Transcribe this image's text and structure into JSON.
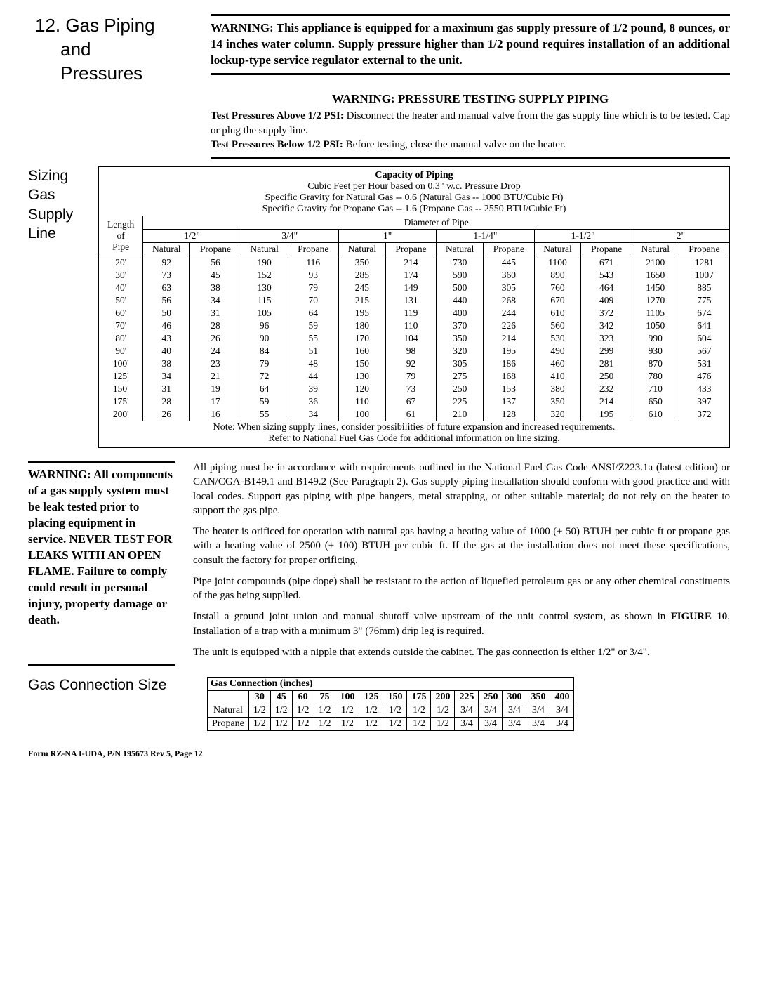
{
  "section": {
    "number": "12.",
    "title_l1": "Gas Piping",
    "title_l2": "and",
    "title_l3": "Pressures"
  },
  "warning_box": "WARNING: This appliance is equipped for a maximum gas supply pressure of 1/2 pound, 8 ounces, or 14 inches water column. Supply pressure higher than 1/2 pound requires installation of an additional lockup-type service regulator external to the unit.",
  "warning2": {
    "title": "WARNING: PRESSURE TESTING SUPPLY PIPING",
    "above_label": "Test Pressures Above 1/2 PSI:",
    "above_text": " Disconnect the heater and manual valve from the gas supply line which is to be tested. Cap or plug the supply line.",
    "below_label": "Test Pressures Below 1/2 PSI:",
    "below_text": " Before testing, close the manual valve on the heater."
  },
  "sizing_label": {
    "l1": "Sizing",
    "l2": "Gas",
    "l3": "Supply",
    "l4": "Line"
  },
  "cap_table": {
    "title": "Capacity of Piping",
    "sub1": "Cubic Feet per Hour based on 0.3\" w.c. Pressure Drop",
    "sub2": "Specific Gravity for Natural Gas -- 0.6 (Natural Gas -- 1000 BTU/Cubic Ft)",
    "sub3": "Specific Gravity for Propane Gas -- 1.6 (Propane Gas -- 2550 BTU/Cubic Ft)",
    "length_header_l1": "Length",
    "length_header_l2": "of",
    "length_header_l3": "Pipe",
    "diameter_header": "Diameter of Pipe",
    "diameters": [
      "1/2\"",
      "3/4\"",
      "1\"",
      "1-1/4\"",
      "1-1/2\"",
      "2\""
    ],
    "sub_headers": [
      "Natural",
      "Propane"
    ],
    "rows": [
      {
        "len": "20'",
        "v": [
          92,
          56,
          190,
          116,
          350,
          214,
          730,
          445,
          1100,
          671,
          2100,
          1281
        ]
      },
      {
        "len": "30'",
        "v": [
          73,
          45,
          152,
          93,
          285,
          174,
          590,
          360,
          890,
          543,
          1650,
          1007
        ]
      },
      {
        "len": "40'",
        "v": [
          63,
          38,
          130,
          79,
          245,
          149,
          500,
          305,
          760,
          464,
          1450,
          885
        ]
      },
      {
        "len": "50'",
        "v": [
          56,
          34,
          115,
          70,
          215,
          131,
          440,
          268,
          670,
          409,
          1270,
          775
        ]
      },
      {
        "len": "60'",
        "v": [
          50,
          31,
          105,
          64,
          195,
          119,
          400,
          244,
          610,
          372,
          1105,
          674
        ]
      },
      {
        "len": "70'",
        "v": [
          46,
          28,
          96,
          59,
          180,
          110,
          370,
          226,
          560,
          342,
          1050,
          641
        ]
      },
      {
        "len": "80'",
        "v": [
          43,
          26,
          90,
          55,
          170,
          104,
          350,
          214,
          530,
          323,
          990,
          604
        ]
      },
      {
        "len": "90'",
        "v": [
          40,
          24,
          84,
          51,
          160,
          98,
          320,
          195,
          490,
          299,
          930,
          567
        ]
      },
      {
        "len": "100'",
        "v": [
          38,
          23,
          79,
          48,
          150,
          92,
          305,
          186,
          460,
          281,
          870,
          531
        ]
      },
      {
        "len": "125'",
        "v": [
          34,
          21,
          72,
          44,
          130,
          79,
          275,
          168,
          410,
          250,
          780,
          476
        ]
      },
      {
        "len": "150'",
        "v": [
          31,
          19,
          64,
          39,
          120,
          73,
          250,
          153,
          380,
          232,
          710,
          433
        ]
      },
      {
        "len": "175'",
        "v": [
          28,
          17,
          59,
          36,
          110,
          67,
          225,
          137,
          350,
          214,
          650,
          397
        ]
      },
      {
        "len": "200'",
        "v": [
          26,
          16,
          55,
          34,
          100,
          61,
          210,
          128,
          320,
          195,
          610,
          372
        ]
      }
    ],
    "note1": "Note: When sizing supply lines, consider possibilities of future expansion and increased requirements.",
    "note2": "Refer to National Fuel Gas Code for additional information on line sizing."
  },
  "leak_warning": "WARNING: All components of a gas supply system must be leak tested prior to placing equipment in service. NEVER TEST FOR LEAKS WITH AN OPEN FLAME. Failure to comply could result in personal injury, property damage or death.",
  "body": {
    "p1": "All piping must be in accordance with requirements outlined in the National Fuel Gas Code ANSI/Z223.1a (latest edition) or CAN/CGA-B149.1 and B149.2 (See Paragraph 2). Gas supply piping installation should conform with good practice and with local codes. Support gas piping with pipe hangers, metal strapping, or other suitable material; do not rely on the heater to support the gas pipe.",
    "p2": "The heater is orificed for operation with natural gas having a heating value of 1000 (± 50) BTUH per cubic ft or propane gas with a heating value of 2500 (± 100) BTUH per cubic ft. If the gas at the installation does not meet these specifications, consult the factory for proper orificing.",
    "p3": "Pipe joint compounds (pipe dope) shall be resistant to the action of liquefied petroleum gas or any other chemical constituents of the gas being supplied.",
    "p4a": "Install a ground joint union and manual shutoff valve upstream of the unit control system, as shown in ",
    "p4b": "FIGURE 10",
    "p4c": ". Installation of a trap with a minimum 3\" (76mm) drip leg is required.",
    "p5": "The unit is equipped with a nipple that extends outside the cabinet. The gas connection is either 1/2\" or 3/4\"."
  },
  "gas_conn": {
    "label": "Gas Connection Size",
    "title": "Gas Connection (inches)",
    "sizes": [
      "30",
      "45",
      "60",
      "75",
      "100",
      "125",
      "150",
      "175",
      "200",
      "225",
      "250",
      "300",
      "350",
      "400"
    ],
    "rows": [
      {
        "label": "Natural",
        "v": [
          "1/2",
          "1/2",
          "1/2",
          "1/2",
          "1/2",
          "1/2",
          "1/2",
          "1/2",
          "1/2",
          "3/4",
          "3/4",
          "3/4",
          "3/4",
          "3/4"
        ]
      },
      {
        "label": "Propane",
        "v": [
          "1/2",
          "1/2",
          "1/2",
          "1/2",
          "1/2",
          "1/2",
          "1/2",
          "1/2",
          "1/2",
          "3/4",
          "3/4",
          "3/4",
          "3/4",
          "3/4"
        ]
      }
    ]
  },
  "footer": "Form RZ-NA I-UDA, P/N 195673 Rev 5, Page 12"
}
